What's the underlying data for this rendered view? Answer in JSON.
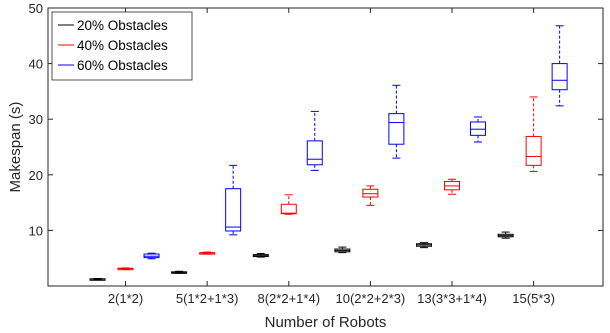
{
  "chart_data": {
    "type": "boxplot",
    "xlabel": "Number of Robots",
    "ylabel": "Makespan (s)",
    "ylim": [
      0,
      50
    ],
    "yticks": [
      10,
      20,
      30,
      40,
      50
    ],
    "categories": [
      "2(1*2)",
      "5(1*2+1*3)",
      "8(2*2+1*4)",
      "10(2*2+2*3)",
      "13(3*3+1*4)",
      "15(5*3)"
    ],
    "grid": false,
    "legend_position": "top-left",
    "series": [
      {
        "name": "20% Obstacles",
        "color": "#000000",
        "boxes": [
          {
            "min": 1.1,
            "q1": 1.2,
            "median": 1.25,
            "q3": 1.3,
            "max": 1.35
          },
          {
            "min": 2.3,
            "q1": 2.4,
            "median": 2.45,
            "q3": 2.55,
            "max": 2.65
          },
          {
            "min": 5.2,
            "q1": 5.3,
            "median": 5.45,
            "q3": 5.65,
            "max": 5.85
          },
          {
            "min": 6.0,
            "q1": 6.15,
            "median": 6.4,
            "q3": 6.65,
            "max": 7.0
          },
          {
            "min": 6.9,
            "q1": 7.15,
            "median": 7.4,
            "q3": 7.6,
            "max": 7.8
          },
          {
            "min": 8.6,
            "q1": 8.85,
            "median": 9.05,
            "q3": 9.3,
            "max": 9.7
          }
        ]
      },
      {
        "name": "40% Obstacles",
        "color": "#ff0000",
        "boxes": [
          {
            "min": 3.05,
            "q1": 3.1,
            "median": 3.15,
            "q3": 3.2,
            "max": 3.25
          },
          {
            "min": 5.8,
            "q1": 5.9,
            "median": 5.95,
            "q3": 6.0,
            "max": 6.1
          },
          {
            "min": 12.9,
            "q1": 13.0,
            "median": 13.1,
            "q3": 14.7,
            "max": 16.4
          },
          {
            "min": 14.5,
            "q1": 16.0,
            "median": 16.6,
            "q3": 17.4,
            "max": 18.0
          },
          {
            "min": 16.5,
            "q1": 17.3,
            "median": 18.0,
            "q3": 18.8,
            "max": 19.2
          },
          {
            "min": 20.6,
            "q1": 21.7,
            "median": 23.3,
            "q3": 26.9,
            "max": 34.0
          }
        ]
      },
      {
        "name": "60% Obstacles",
        "color": "#0000ff",
        "boxes": [
          {
            "min": 4.9,
            "q1": 5.1,
            "median": 5.35,
            "q3": 5.75,
            "max": 5.9
          },
          {
            "min": 9.2,
            "q1": 9.9,
            "median": 10.6,
            "q3": 17.5,
            "max": 21.7
          },
          {
            "min": 20.8,
            "q1": 21.8,
            "median": 22.8,
            "q3": 26.1,
            "max": 31.4
          },
          {
            "min": 23.0,
            "q1": 25.5,
            "median": 29.4,
            "q3": 31.0,
            "max": 36.1
          },
          {
            "min": 25.9,
            "q1": 27.1,
            "median": 28.2,
            "q3": 29.5,
            "max": 30.4
          },
          {
            "min": 32.4,
            "q1": 35.3,
            "median": 37.0,
            "q3": 40.0,
            "max": 46.8
          }
        ]
      }
    ]
  }
}
